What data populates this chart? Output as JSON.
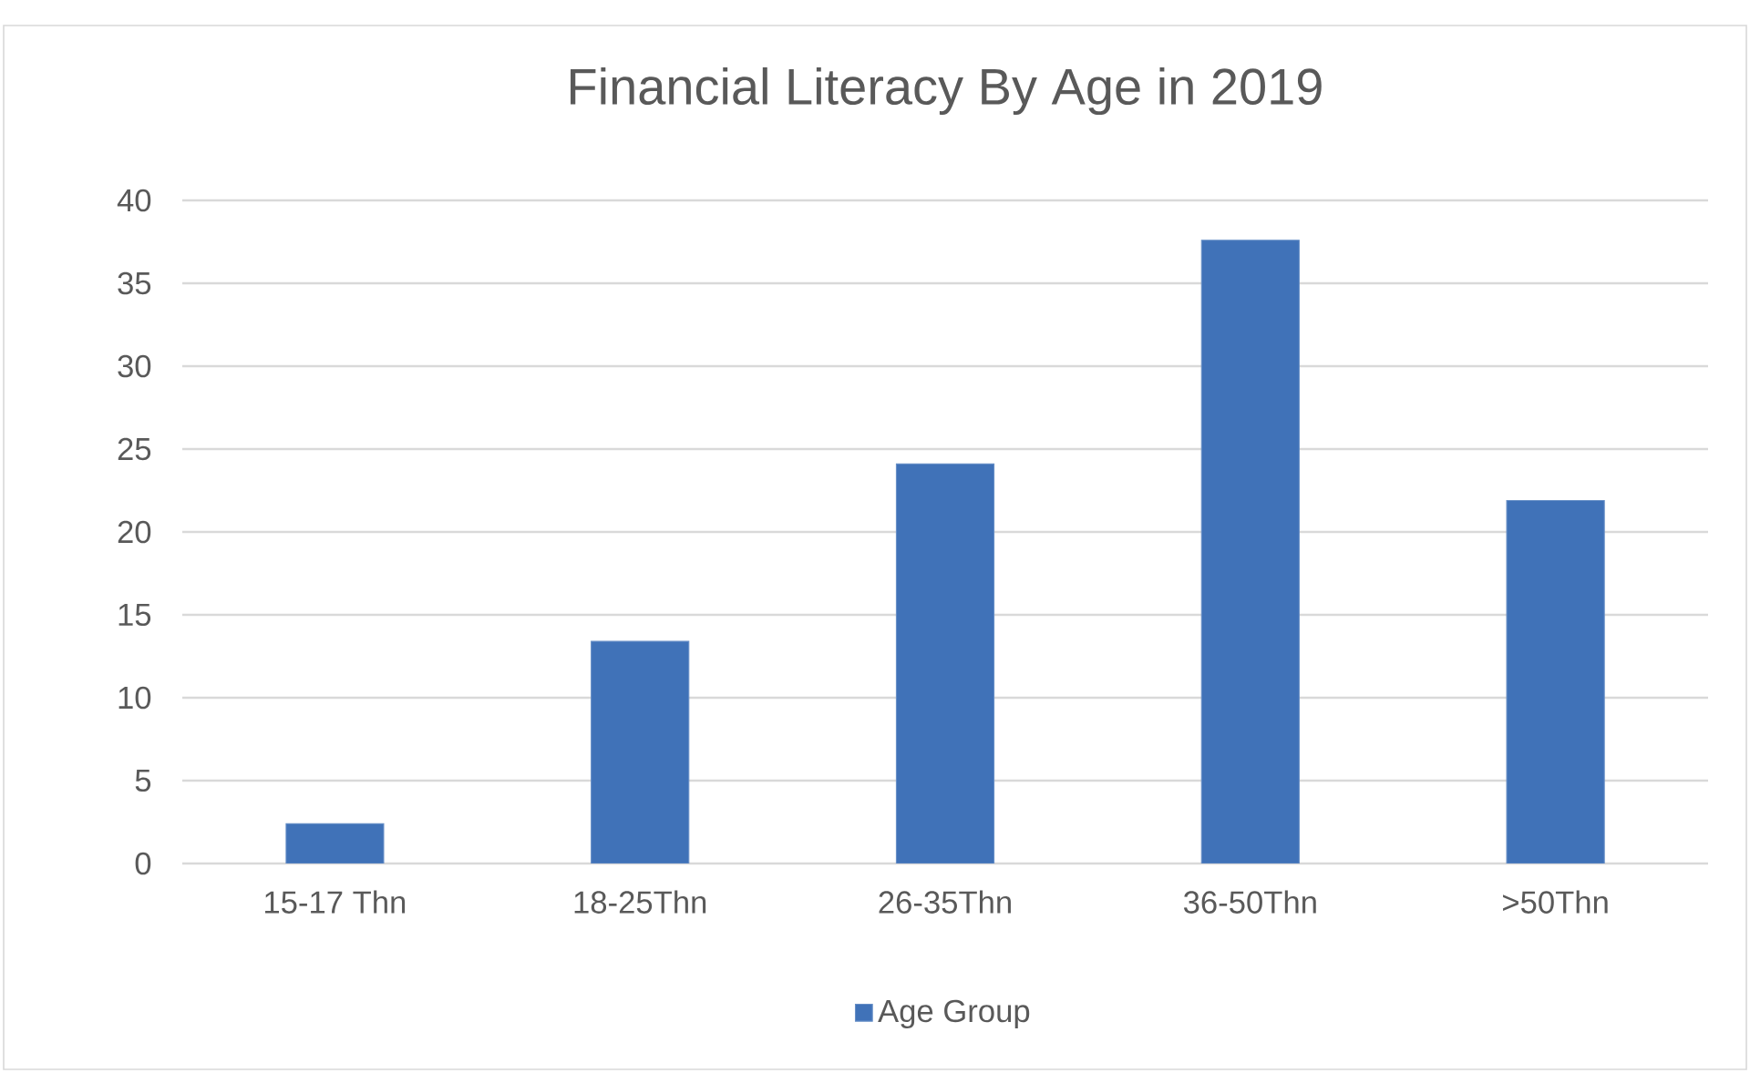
{
  "chart_data": {
    "type": "bar",
    "title": "Financial Literacy By Age in 2019",
    "categories": [
      "15-17 Thn",
      "18-25Thn",
      "26-35Thn",
      "36-50Thn",
      ">50Thn"
    ],
    "series": [
      {
        "name": "Age Group",
        "color": "#4072b8",
        "values": [
          2.4,
          13.4,
          24.1,
          37.6,
          21.9
        ]
      }
    ],
    "ylim": [
      0,
      40
    ],
    "yticks": [
      0,
      5,
      10,
      15,
      20,
      25,
      30,
      35,
      40
    ],
    "grid": "y",
    "legend": "bottom"
  }
}
